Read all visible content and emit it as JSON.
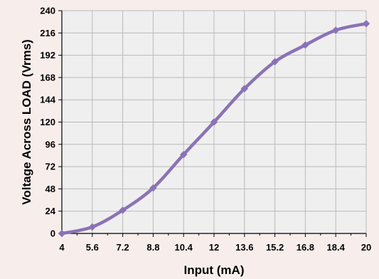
{
  "chart_data": {
    "type": "line",
    "title": "",
    "xlabel": "Input (mA)",
    "ylabel": "Voltage Across LOAD (Vrms)",
    "x": [
      4,
      5.6,
      7.2,
      8.8,
      10.4,
      12,
      13.6,
      15.2,
      16.8,
      18.4,
      20
    ],
    "x_tick_labels": [
      "4",
      "5.6",
      "7.2",
      "8.8",
      "10.4",
      "12",
      "13.6",
      "15.2",
      "16.8",
      "18.4",
      "20"
    ],
    "xlim": [
      4,
      20
    ],
    "ylim": [
      0,
      240
    ],
    "y_ticks": [
      0,
      24,
      48,
      72,
      96,
      120,
      144,
      168,
      192,
      216,
      240
    ],
    "grid": true,
    "legend": "none",
    "series": [
      {
        "values": [
          0,
          7,
          25,
          49,
          85,
          120,
          156,
          185,
          203,
          219,
          226
        ],
        "color": "#8a73b5"
      }
    ],
    "colors": {
      "background": "#f7eeec",
      "plot_background": "#f0efef",
      "grid": "#b9b9b9",
      "axis": "#000000",
      "line": "#8a73b5"
    }
  }
}
